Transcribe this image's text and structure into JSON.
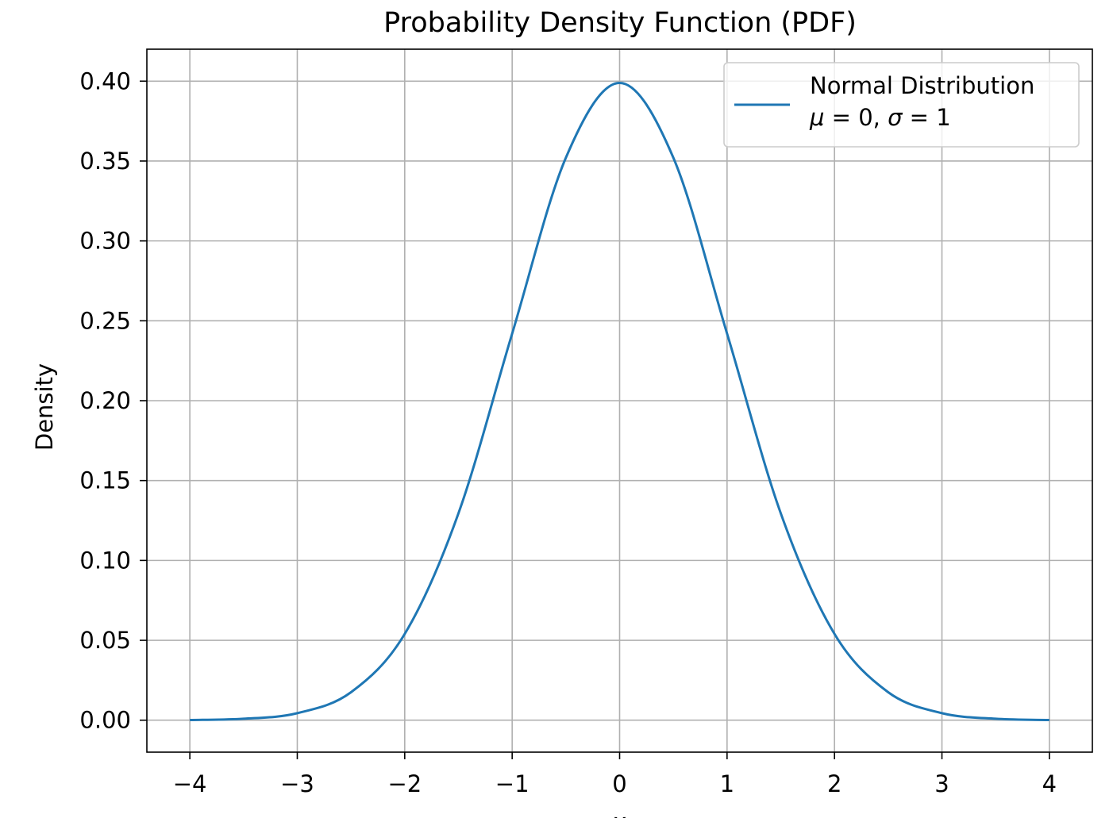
{
  "chart_data": {
    "type": "line",
    "title": "Probability Density Function (PDF)",
    "xlabel": "x",
    "ylabel": "Density",
    "xlim": [
      -4.4,
      4.4
    ],
    "ylim": [
      -0.02,
      0.42
    ],
    "xticks": [
      -4,
      -3,
      -2,
      -1,
      0,
      1,
      2,
      3,
      4
    ],
    "xtick_labels": [
      "−4",
      "−3",
      "−2",
      "−1",
      "0",
      "1",
      "2",
      "3",
      "4"
    ],
    "yticks": [
      0.0,
      0.05,
      0.1,
      0.15,
      0.2,
      0.25,
      0.3,
      0.35,
      0.4
    ],
    "ytick_labels": [
      "0.00",
      "0.05",
      "0.10",
      "0.15",
      "0.20",
      "0.25",
      "0.30",
      "0.35",
      "0.40"
    ],
    "grid": true,
    "legend_placement": "top-right",
    "legend": {
      "label_line1": "Normal Distribution",
      "mu_symbol": "μ",
      "sigma_symbol": "σ",
      "label_line2_parts": [
        " = 0, ",
        " = 1"
      ]
    },
    "series": [
      {
        "name": "Normal Distribution\nμ = 0, σ = 1",
        "color": "#1f77b4",
        "x": [
          -4.0,
          -3.5,
          -3.0,
          -2.5,
          -2.0,
          -1.5,
          -1.0,
          -0.5,
          0.0,
          0.5,
          1.0,
          1.5,
          2.0,
          2.5,
          3.0,
          3.5,
          4.0
        ],
        "y": [
          0.0001,
          0.0009,
          0.0044,
          0.0175,
          0.054,
          0.1295,
          0.242,
          0.3521,
          0.3989,
          0.3521,
          0.242,
          0.1295,
          0.054,
          0.0175,
          0.0044,
          0.0009,
          0.0001
        ]
      }
    ]
  },
  "colors": {
    "grid": "#b0b0b0",
    "axes": "#000000",
    "line": "#1f77b4",
    "legend_border": "#cccccc"
  }
}
